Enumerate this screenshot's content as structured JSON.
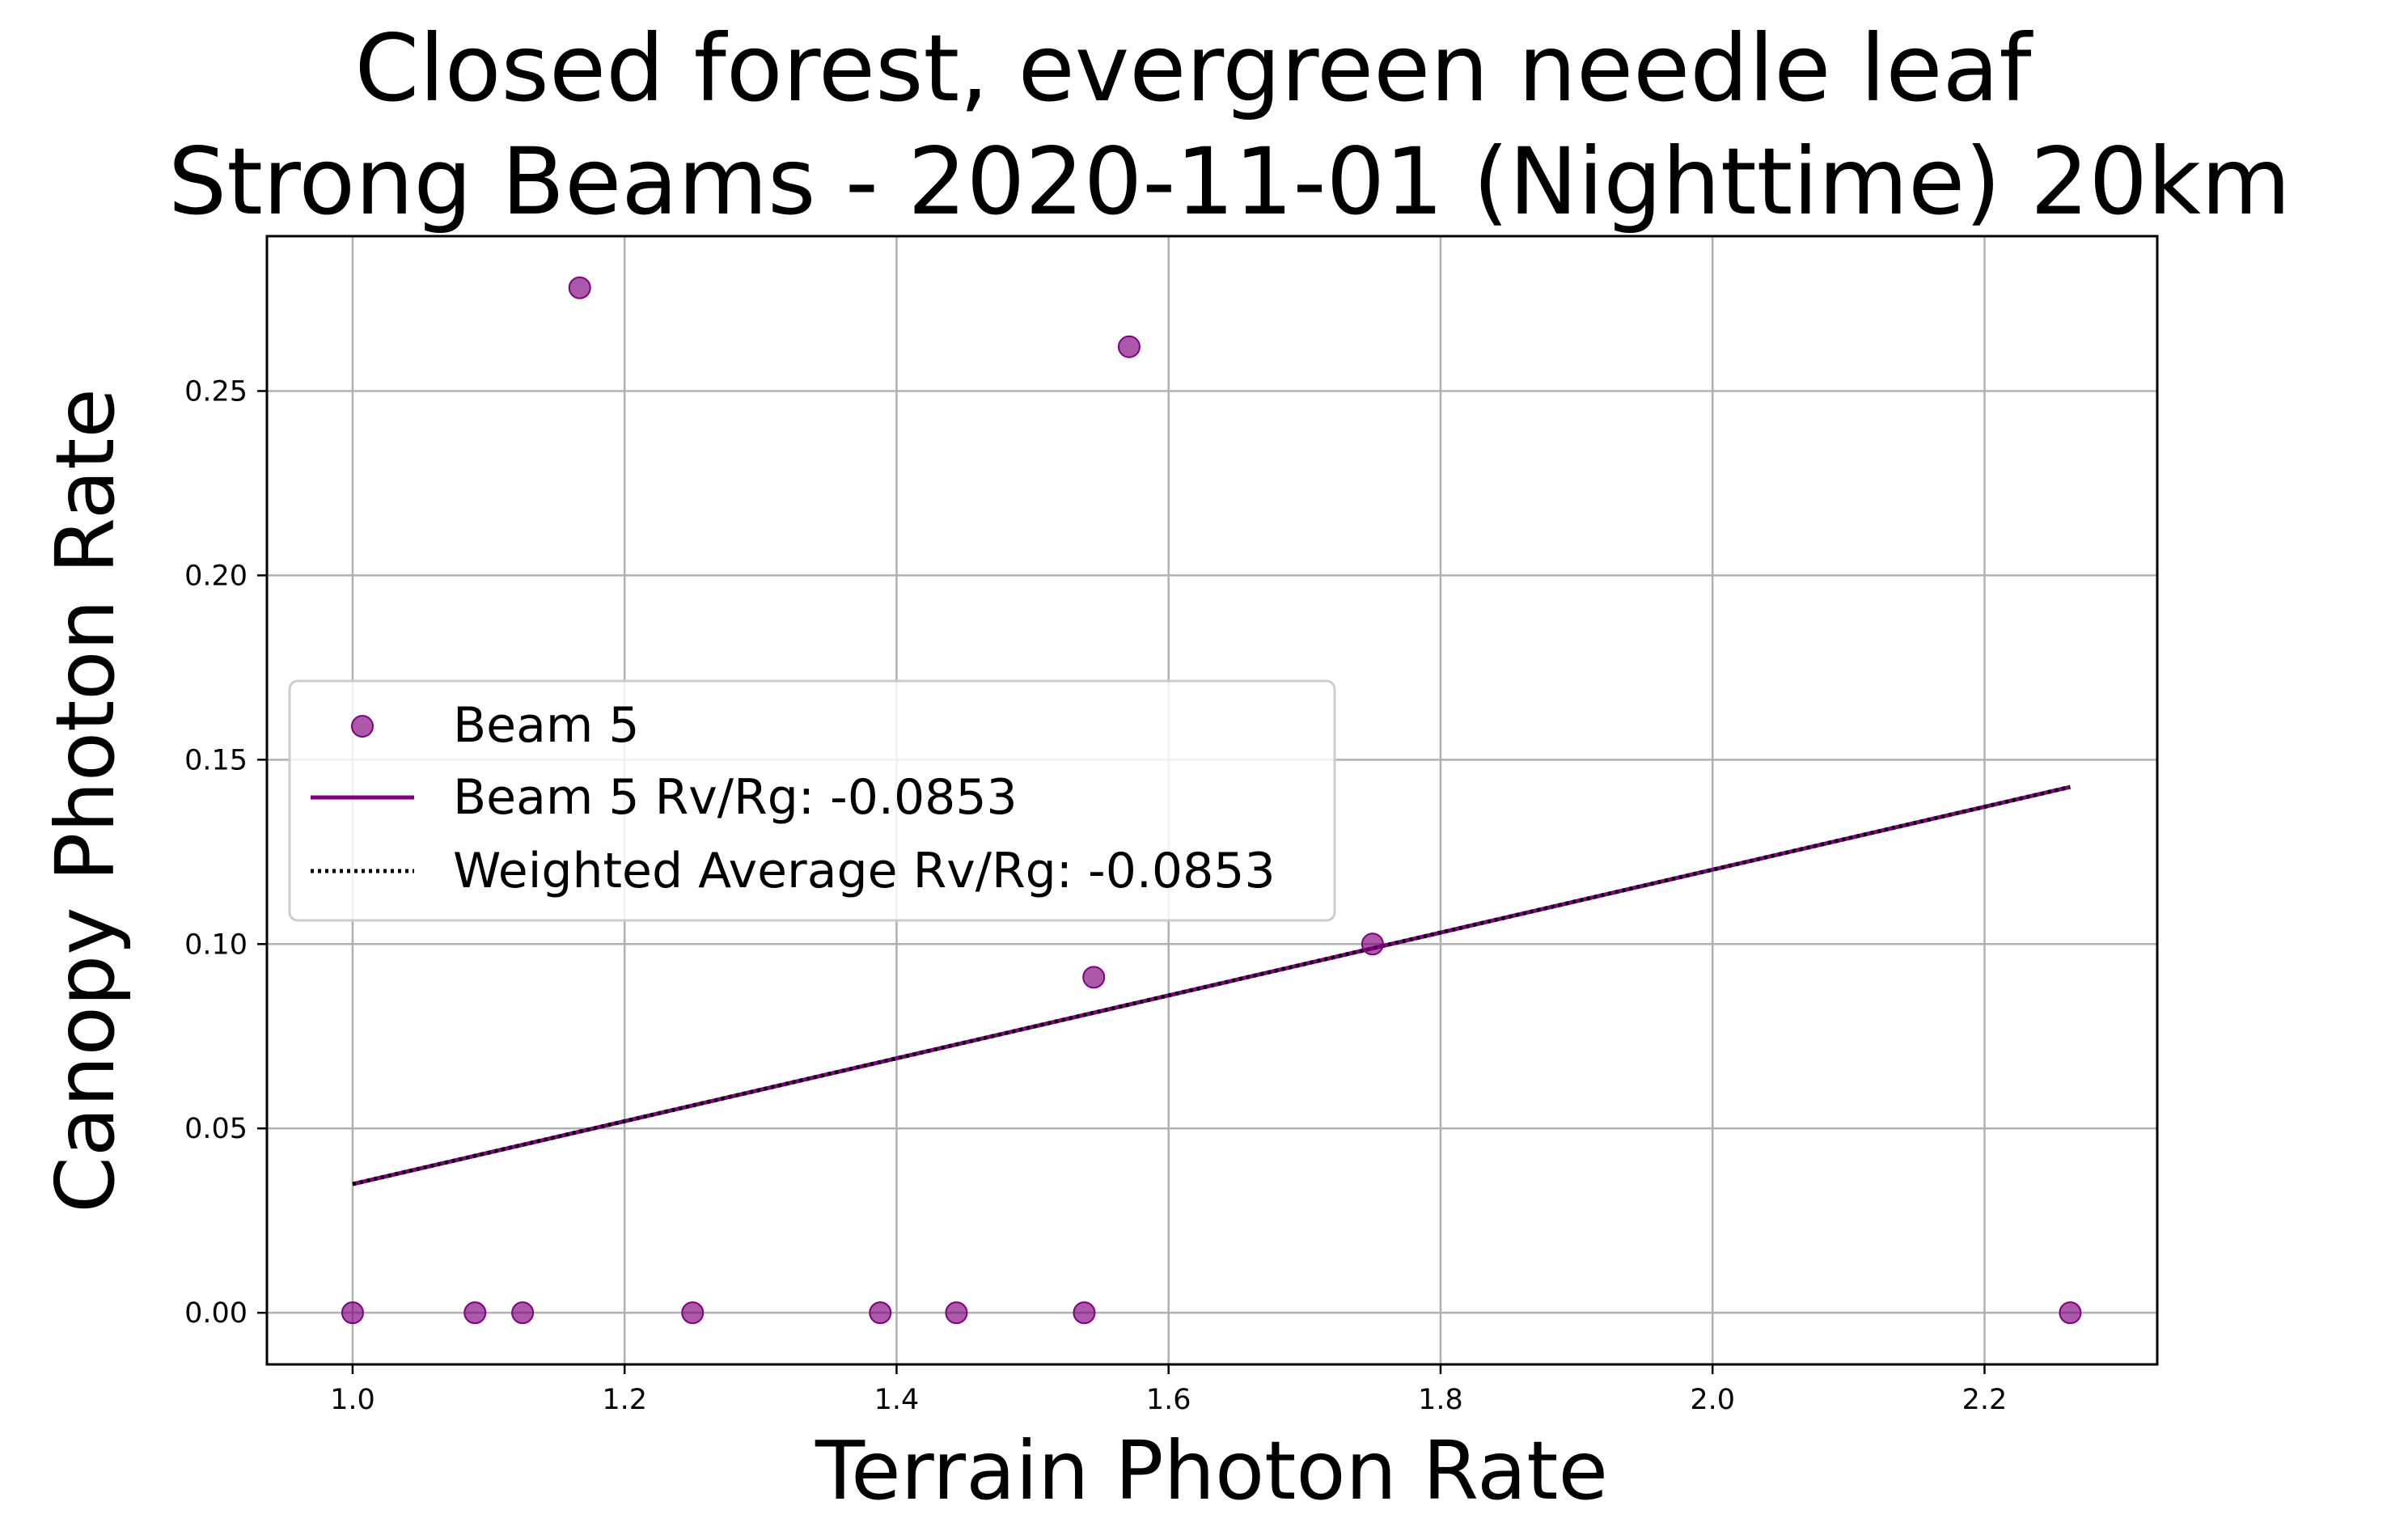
{
  "chart_data": {
    "type": "scatter",
    "title": "Closed forest, evergreen needle leaf\nStrong Beams - 2020-11-01 (Nighttime) 20km",
    "title_lines": [
      "Closed forest, evergreen needle leaf",
      "Strong Beams - 2020-11-01 (Nighttime) 20km"
    ],
    "xlabel": "Terrain Photon Rate",
    "ylabel": "Canopy Photon Rate",
    "xlim": [
      0.937,
      2.327
    ],
    "ylim": [
      -0.014,
      0.292
    ],
    "xticks": [
      {
        "value": 1.0,
        "label": "1.0"
      },
      {
        "value": 1.2,
        "label": "1.2"
      },
      {
        "value": 1.4,
        "label": "1.4"
      },
      {
        "value": 1.6,
        "label": "1.6"
      },
      {
        "value": 1.8,
        "label": "1.8"
      },
      {
        "value": 2.0,
        "label": "2.0"
      },
      {
        "value": 2.2,
        "label": "2.2"
      }
    ],
    "yticks": [
      {
        "value": 0.0,
        "label": "0.00"
      },
      {
        "value": 0.05,
        "label": "0.05"
      },
      {
        "value": 0.1,
        "label": "0.10"
      },
      {
        "value": 0.15,
        "label": "0.15"
      },
      {
        "value": 0.2,
        "label": "0.20"
      },
      {
        "value": 0.25,
        "label": "0.25"
      }
    ],
    "grid": true,
    "legend_position": "center-left",
    "series": [
      {
        "name": "Beam 5",
        "kind": "scatter",
        "color": "#800080",
        "points": [
          {
            "x": 1.0,
            "y": 0.0
          },
          {
            "x": 1.09,
            "y": 0.0
          },
          {
            "x": 1.125,
            "y": 0.0
          },
          {
            "x": 1.25,
            "y": 0.0
          },
          {
            "x": 1.388,
            "y": 0.0
          },
          {
            "x": 1.444,
            "y": 0.0
          },
          {
            "x": 1.538,
            "y": 0.0
          },
          {
            "x": 2.263,
            "y": 0.0
          },
          {
            "x": 1.167,
            "y": 0.278
          },
          {
            "x": 1.571,
            "y": 0.262
          },
          {
            "x": 1.545,
            "y": 0.091
          },
          {
            "x": 1.75,
            "y": 0.1
          }
        ]
      },
      {
        "name": "Beam 5 Rv/Rg: -0.0853",
        "kind": "line",
        "style": "solid",
        "color": "#800080",
        "points": [
          {
            "x": 1.0,
            "y": 0.0349
          },
          {
            "x": 2.263,
            "y": 0.1426
          }
        ]
      },
      {
        "name": "Weighted Average Rv/Rg: -0.0853",
        "kind": "line",
        "style": "dotted",
        "color": "#000000",
        "points": [
          {
            "x": 1.0,
            "y": 0.0349
          },
          {
            "x": 2.263,
            "y": 0.1426
          }
        ]
      }
    ]
  }
}
